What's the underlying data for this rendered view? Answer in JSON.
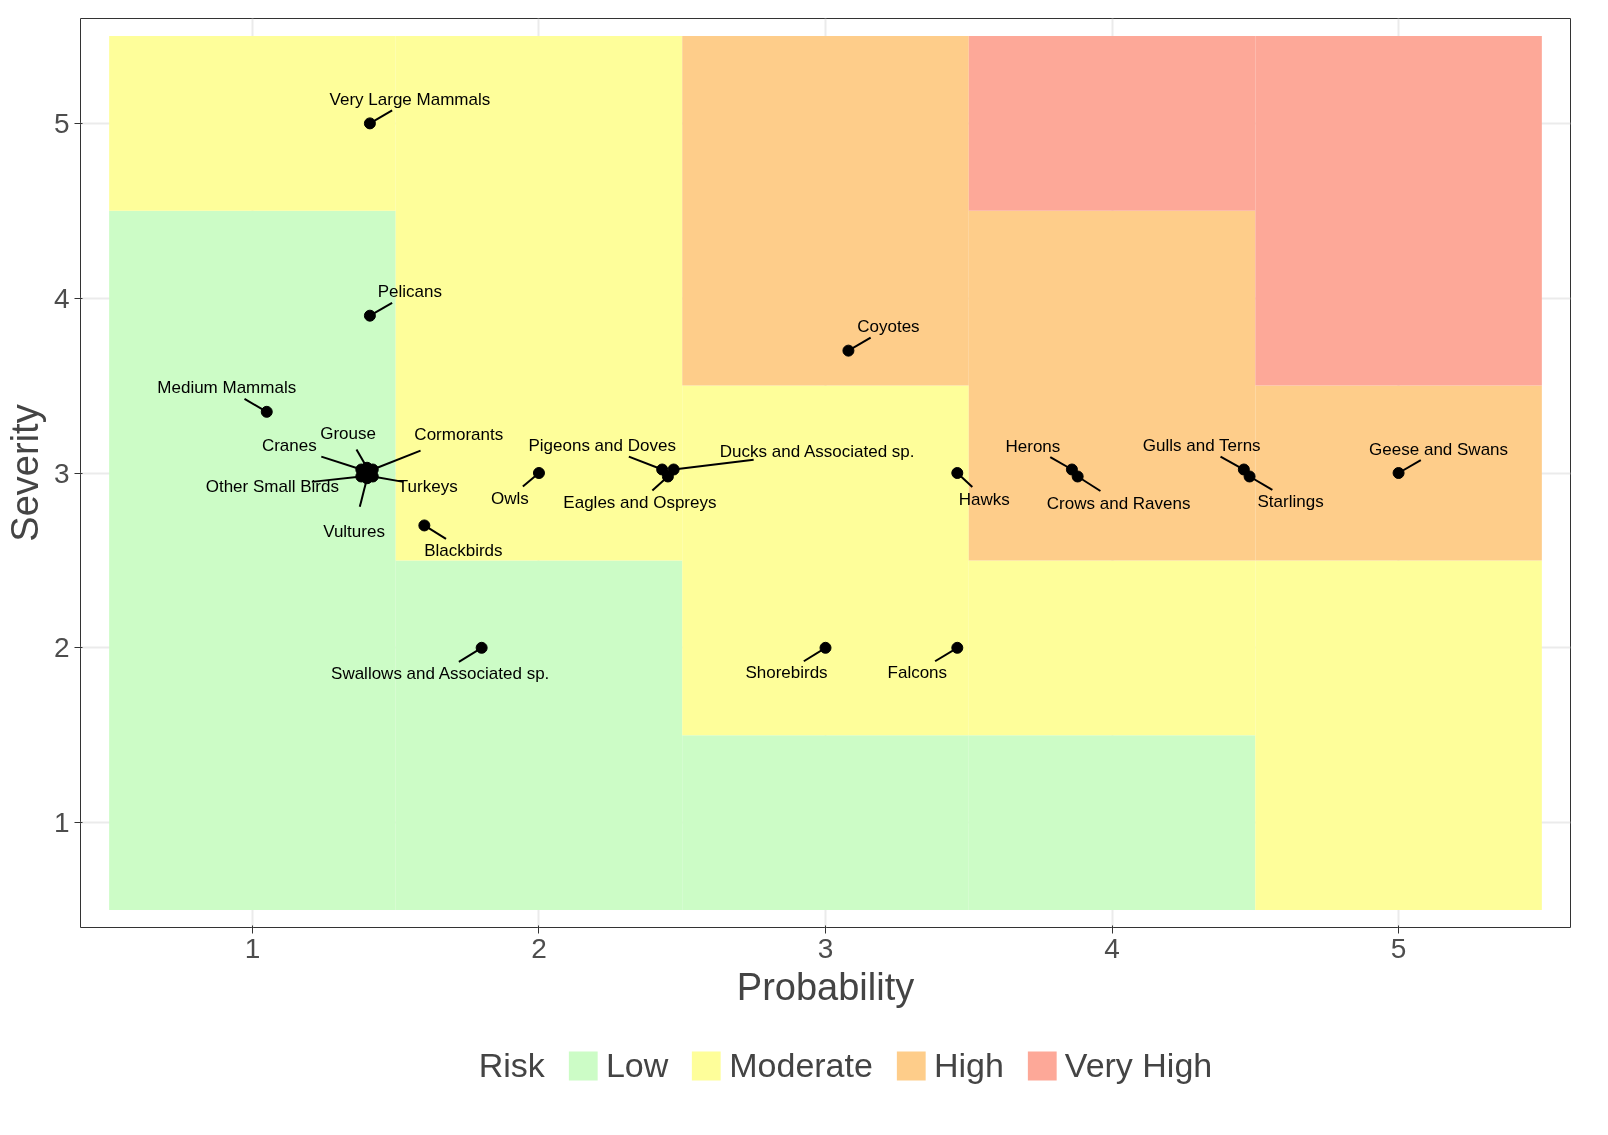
{
  "chart_data": {
    "type": "bar",
    "xlabel": "Probability",
    "ylabel": "Severity",
    "legend_title": "Risk",
    "legend": "bottom",
    "grid": true,
    "marker": "circle",
    "x": [
      1,
      2,
      3,
      4,
      5
    ],
    "xlim": [
      0.4,
      5.6
    ],
    "ylim": [
      0.4,
      5.6
    ],
    "xticks": [
      1,
      2,
      3,
      4,
      5
    ],
    "yticks": [
      1,
      2,
      3,
      4,
      5
    ],
    "series": [
      {
        "name": "Low",
        "color": "#ccfcc6",
        "base": [
          0.5,
          0.5,
          0.5,
          0.5,
          null
        ],
        "values": [
          4,
          2,
          1,
          1,
          null
        ]
      },
      {
        "name": "Moderate",
        "color": "#fefe9a",
        "base": [
          4.5,
          2.5,
          1.5,
          1.5,
          0.5
        ],
        "values": [
          1,
          3,
          2,
          1,
          2
        ]
      },
      {
        "name": "High",
        "color": "#fecd8a",
        "base": [
          null,
          null,
          3.5,
          2.5,
          2.5
        ],
        "values": [
          null,
          null,
          2,
          2,
          1
        ]
      },
      {
        "name": "Very High",
        "color": "#fda898",
        "base": [
          null,
          null,
          null,
          4.5,
          3.5
        ],
        "values": [
          null,
          null,
          null,
          1,
          2
        ]
      },
      {
        "type": "scatter",
        "color": "#000000",
        "x": [
          1.41,
          1.41,
          3.08,
          1.05,
          1.38,
          1.4,
          1.42,
          1.38,
          1.42,
          1.4,
          2.0,
          2.43,
          2.47,
          2.45,
          3.46,
          3.86,
          3.88,
          4.46,
          4.48,
          5.0,
          1.6,
          1.8,
          3.0,
          3.46
        ],
        "values": [
          5,
          3.9,
          3.7,
          3.35,
          3.02,
          3.03,
          3.02,
          2.98,
          2.98,
          2.97,
          3,
          3.02,
          3.02,
          2.98,
          3,
          3.02,
          2.98,
          3.02,
          2.98,
          3,
          2.7,
          2,
          2,
          2
        ],
        "value_labels": [
          "Very Large Mammals",
          "Pelicans",
          "Coyotes",
          "Medium Mammals",
          "Cranes",
          "Grouse",
          "Cormorants",
          "Other Small Birds",
          "Turkeys",
          "Vultures",
          "Owls",
          "Pigeons and Doves",
          "Ducks and Associated sp.",
          "Eagles and Ospreys",
          "Hawks",
          "Herons",
          "Crows and Ravens",
          "Gulls and Terns",
          "Starlings",
          "Geese and Swans",
          "Blackbirds",
          "Swallows and Associated sp.",
          "Shorebirds",
          "Falcons"
        ]
      }
    ]
  }
}
